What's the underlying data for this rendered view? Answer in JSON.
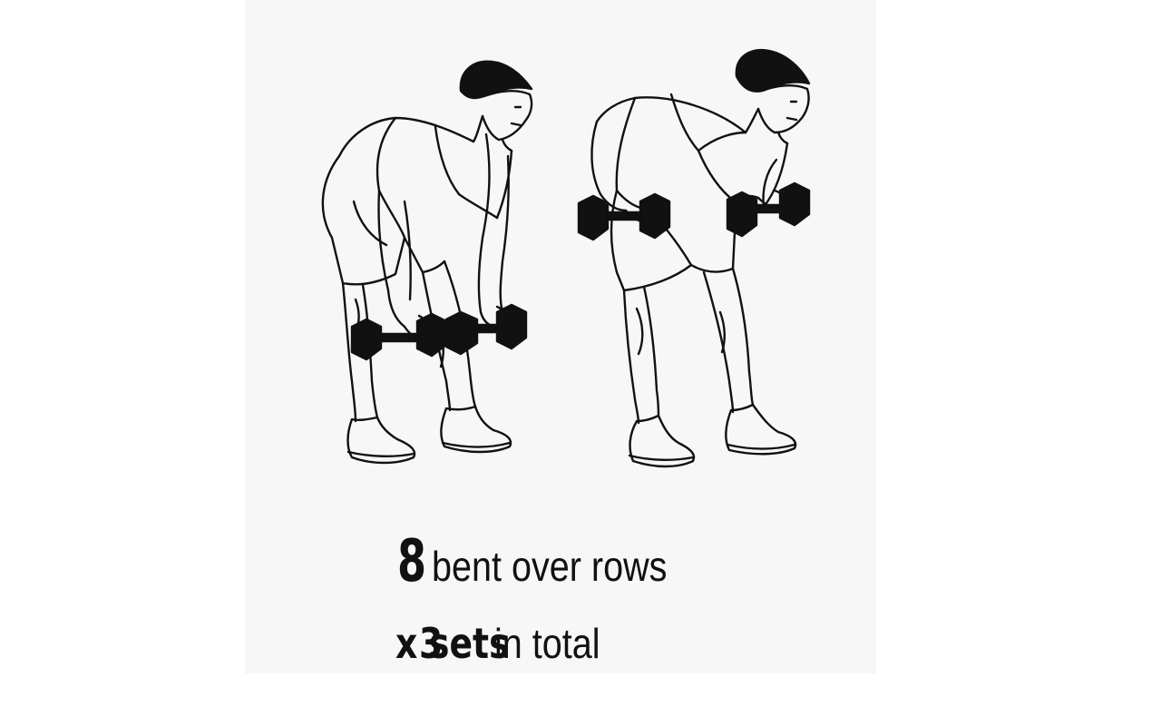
{
  "exercise": {
    "reps_count": "8",
    "name": "bent over rows",
    "sets_prefix": "x",
    "sets_count": "3",
    "sets_word": "sets",
    "sets_suffix": "in total"
  },
  "colors": {
    "card_background": "#f7f7f7",
    "page_background": "#ffffff",
    "ink": "#111111"
  },
  "icons": {
    "figure_left": "bent-over-row-start-position-illustration",
    "figure_right": "bent-over-row-pull-position-illustration"
  }
}
